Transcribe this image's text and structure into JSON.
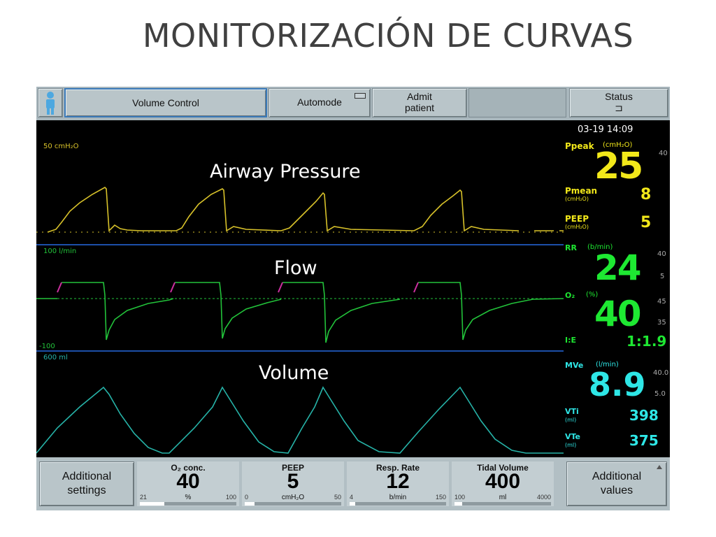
{
  "slide": {
    "title": "MONITORIZACIÓN DE CURVAS"
  },
  "toolbar": {
    "mode_button": "Volume Control",
    "automode_button": "Automode",
    "admit_line1": "Admit",
    "admit_line2": "patient",
    "status_label": "Status",
    "status_icon": "⊐"
  },
  "waves": {
    "pressure": {
      "label": "Airway Pressure",
      "scale": "50  cmH₂O",
      "color": "#d8c22a"
    },
    "flow": {
      "label": "Flow",
      "scale_top": "100  l/min",
      "scale_bottom": "-100",
      "color": "#22c23a",
      "marker_color": "#cc2fa0"
    },
    "volume": {
      "label": "Volume",
      "scale": "600  ml",
      "color": "#26b3a8"
    }
  },
  "panel": {
    "datetime": "03-19   14:09",
    "ppeak": {
      "label": "Ppeak",
      "unit": "(cmH₂O)",
      "value": "25",
      "limit": "40"
    },
    "pmean": {
      "label": "Pmean",
      "unit": "(cmH₂O)",
      "value": "8"
    },
    "peep": {
      "label": "PEEP",
      "unit": "(cmH₂O)",
      "value": "5"
    },
    "rr": {
      "label": "RR",
      "unit": "(b/min)",
      "value": "24",
      "limit_hi": "40",
      "limit_lo": "5"
    },
    "o2": {
      "label": "O₂",
      "unit": "(%)",
      "value": "40",
      "limit_hi": "45",
      "limit_lo": "35"
    },
    "ie": {
      "label": "I:E",
      "value": "1:1.9"
    },
    "mve": {
      "label": "MVe",
      "unit": "(l/min)",
      "value": "8.9",
      "limit_hi": "40.0",
      "limit_lo": "5.0"
    },
    "vti": {
      "label": "VTi",
      "unit": "(ml)",
      "value": "398"
    },
    "vte": {
      "label": "VTe",
      "unit": "(ml)",
      "value": "375"
    },
    "colors": {
      "yellow": "#f2e81a",
      "green": "#1ee832",
      "cyan": "#2ee6e6"
    }
  },
  "bottom": {
    "additional_settings": "Additional settings",
    "additional_values": "Additional values",
    "settings": [
      {
        "name": "O₂ conc.",
        "value": "40",
        "unit": "%",
        "min": "21",
        "max": "100",
        "level": 0.25
      },
      {
        "name": "PEEP",
        "value": "5",
        "unit": "cmH₂O",
        "min": "0",
        "max": "50",
        "level": 0.1
      },
      {
        "name": "Resp. Rate",
        "value": "12",
        "unit": "b/min",
        "min": "4",
        "max": "150",
        "level": 0.06
      },
      {
        "name": "Tidal Volume",
        "value": "400",
        "unit": "ml",
        "min": "100",
        "max": "4000",
        "level": 0.08
      }
    ]
  }
}
